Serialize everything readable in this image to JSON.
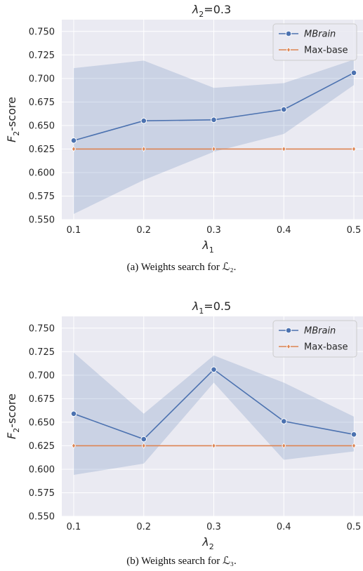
{
  "chart_data": [
    {
      "type": "line",
      "title": "λ₂=0.3",
      "title_parts": {
        "base": "λ",
        "sub": "2",
        "rest": "=0.3"
      },
      "xlabel": "λ₁",
      "xlabel_parts": {
        "base": "λ",
        "sub": "1"
      },
      "ylabel": "F₂-score",
      "ylabel_parts": {
        "base": "F",
        "sub": "2",
        "rest": "-score"
      },
      "x": [
        0.1,
        0.2,
        0.3,
        0.4,
        0.5
      ],
      "x_ticks": [
        "0.1",
        "0.2",
        "0.3",
        "0.4",
        "0.5"
      ],
      "ylim": [
        0.55,
        0.7625
      ],
      "y_ticks": [
        0.55,
        0.575,
        0.6,
        0.625,
        0.65,
        0.675,
        0.7,
        0.725,
        0.75
      ],
      "y_tick_labels": [
        "0.550",
        "0.575",
        "0.600",
        "0.625",
        "0.650",
        "0.675",
        "0.700",
        "0.725",
        "0.750"
      ],
      "grid": true,
      "legend_position": "top-right",
      "series": [
        {
          "name": "MBrain",
          "italic": true,
          "color": "#4c72b0",
          "marker": "circle",
          "values": [
            0.634,
            0.655,
            0.656,
            0.667,
            0.706
          ],
          "band_upper": [
            0.711,
            0.719,
            0.69,
            0.695,
            0.72
          ],
          "band_lower": [
            0.556,
            0.592,
            0.622,
            0.641,
            0.693
          ]
        },
        {
          "name": "Max-base",
          "italic": false,
          "color": "#dd8452",
          "marker": "diamond",
          "values": [
            0.625,
            0.625,
            0.625,
            0.625,
            0.625
          ]
        }
      ]
    },
    {
      "type": "line",
      "title": "λ₁=0.5",
      "title_parts": {
        "base": "λ",
        "sub": "1",
        "rest": "=0.5"
      },
      "xlabel": "λ₂",
      "xlabel_parts": {
        "base": "λ",
        "sub": "2"
      },
      "ylabel": "F₂-score",
      "ylabel_parts": {
        "base": "F",
        "sub": "2",
        "rest": "-score"
      },
      "x": [
        0.1,
        0.2,
        0.3,
        0.4,
        0.5
      ],
      "x_ticks": [
        "0.1",
        "0.2",
        "0.3",
        "0.4",
        "0.5"
      ],
      "ylim": [
        0.55,
        0.7625
      ],
      "y_ticks": [
        0.55,
        0.575,
        0.6,
        0.625,
        0.65,
        0.675,
        0.7,
        0.725,
        0.75
      ],
      "y_tick_labels": [
        "0.550",
        "0.575",
        "0.600",
        "0.625",
        "0.650",
        "0.675",
        "0.700",
        "0.725",
        "0.750"
      ],
      "grid": true,
      "legend_position": "top-right",
      "series": [
        {
          "name": "MBrain",
          "italic": true,
          "color": "#4c72b0",
          "marker": "circle",
          "values": [
            0.659,
            0.632,
            0.706,
            0.651,
            0.637
          ],
          "band_upper": [
            0.724,
            0.659,
            0.721,
            0.692,
            0.656
          ],
          "band_lower": [
            0.594,
            0.606,
            0.692,
            0.61,
            0.619
          ]
        },
        {
          "name": "Max-base",
          "italic": false,
          "color": "#dd8452",
          "marker": "diamond",
          "values": [
            0.625,
            0.625,
            0.625,
            0.625,
            0.625
          ]
        }
      ]
    }
  ],
  "captions": {
    "a": "(a)  Weights search for ℒ₂.",
    "b": "(b)  Weights search for ℒ₃."
  }
}
